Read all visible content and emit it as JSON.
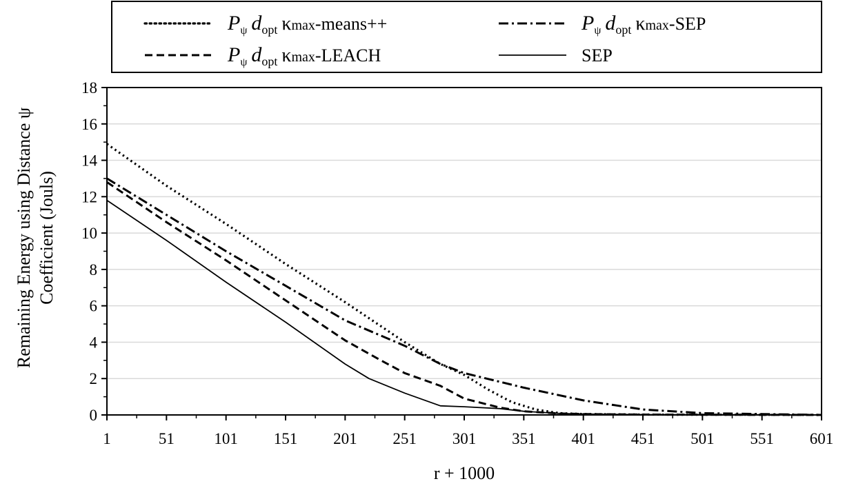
{
  "chart_data": {
    "type": "line",
    "xlabel": "r + 1000",
    "ylabel_lines": [
      "Remaining Energy using Distance ψ",
      "Coefficient (Jouls)"
    ],
    "x_ticks": [
      "1",
      "51",
      "101",
      "151",
      "201",
      "251",
      "301",
      "351",
      "401",
      "451",
      "501",
      "551",
      "601"
    ],
    "y_ticks": [
      "0",
      "2",
      "4",
      "6",
      "8",
      "10",
      "12",
      "14",
      "16",
      "18"
    ],
    "xlim": [
      1,
      601
    ],
    "ylim": [
      0,
      18
    ],
    "grid": "horizontal",
    "legend_position": "top",
    "series": [
      {
        "name": "Pψ dopt κmax-means++",
        "legend_parts": {
          "p": "P",
          "psi": "ψ",
          "d": "d",
          "opt": "opt",
          "kappa": "κ",
          "max": "max",
          "suffix": "-means++"
        },
        "style": "dotted",
        "x": [
          1,
          51,
          101,
          151,
          201,
          251,
          281,
          301,
          321,
          341,
          361,
          381,
          401,
          451,
          501,
          551,
          601
        ],
        "y": [
          14.9,
          12.6,
          10.5,
          8.3,
          6.2,
          4.0,
          2.8,
          2.2,
          1.4,
          0.7,
          0.3,
          0.1,
          0.05,
          0.02,
          0.01,
          0.01,
          0.0
        ]
      },
      {
        "name": "Pψ dopt κmax-SEP",
        "legend_parts": {
          "p": "P",
          "psi": "ψ",
          "d": "d",
          "opt": "opt",
          "kappa": "κ",
          "max": "max",
          "suffix": "-SEP"
        },
        "style": "dashdot",
        "x": [
          1,
          51,
          101,
          151,
          201,
          251,
          281,
          301,
          351,
          401,
          451,
          501,
          551,
          601
        ],
        "y": [
          13.0,
          11.0,
          9.0,
          7.1,
          5.2,
          3.8,
          2.8,
          2.3,
          1.5,
          0.8,
          0.3,
          0.1,
          0.05,
          0.0
        ]
      },
      {
        "name": "Pψ dopt κmax-LEACH",
        "legend_parts": {
          "p": "P",
          "psi": "ψ",
          "d": "d",
          "opt": "opt",
          "kappa": "κ",
          "max": "max",
          "suffix": "-LEACH"
        },
        "style": "dashed",
        "x": [
          1,
          51,
          101,
          151,
          201,
          231,
          251,
          281,
          301,
          331,
          351,
          381,
          401,
          451,
          501,
          601
        ],
        "y": [
          12.8,
          10.6,
          8.5,
          6.3,
          4.1,
          3.0,
          2.3,
          1.6,
          0.9,
          0.4,
          0.2,
          0.08,
          0.05,
          0.02,
          0.01,
          0.0
        ]
      },
      {
        "name": "SEP",
        "legend_parts": {
          "p": "",
          "psi": "",
          "d": "",
          "opt": "",
          "kappa": "",
          "max": "",
          "suffix": "SEP"
        },
        "style": "solid",
        "x": [
          1,
          51,
          101,
          151,
          201,
          221,
          251,
          281,
          301,
          331,
          351,
          381,
          401,
          451,
          501,
          601
        ],
        "y": [
          11.8,
          9.6,
          7.3,
          5.1,
          2.8,
          2.0,
          1.2,
          0.5,
          0.45,
          0.35,
          0.2,
          0.08,
          0.05,
          0.02,
          0.01,
          0.0
        ]
      }
    ]
  }
}
